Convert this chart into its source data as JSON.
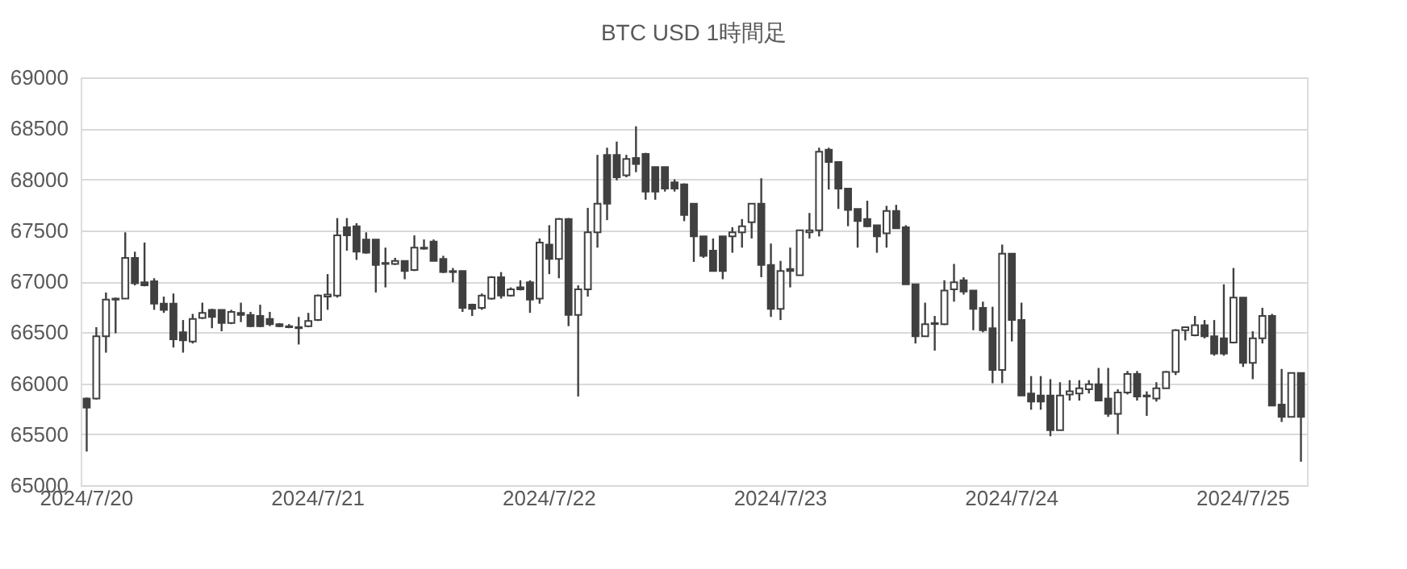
{
  "chart_data": {
    "type": "candlestick",
    "title": "BTC USD 1時間足",
    "categories": [
      "2024/7/20",
      null,
      null,
      null,
      null,
      null,
      null,
      null,
      null,
      null,
      null,
      null,
      null,
      null,
      null,
      null,
      null,
      null,
      null,
      null,
      null,
      null,
      null,
      null,
      "2024/7/21",
      null,
      null,
      null,
      null,
      null,
      null,
      null,
      null,
      null,
      null,
      null,
      null,
      null,
      null,
      null,
      null,
      null,
      null,
      null,
      null,
      null,
      null,
      null,
      "2024/7/22",
      null,
      null,
      null,
      null,
      null,
      null,
      null,
      null,
      null,
      null,
      null,
      null,
      null,
      null,
      null,
      null,
      null,
      null,
      null,
      null,
      null,
      null,
      null,
      "2024/7/23",
      null,
      null,
      null,
      null,
      null,
      null,
      null,
      null,
      null,
      null,
      null,
      null,
      null,
      null,
      null,
      null,
      null,
      null,
      null,
      null,
      null,
      null,
      null,
      "2024/7/24",
      null,
      null,
      null,
      null,
      null,
      null,
      null,
      null,
      null,
      null,
      null,
      null,
      null,
      null,
      null,
      null,
      null,
      null,
      null,
      null,
      null,
      null,
      null,
      "2024/7/25",
      null,
      null,
      null,
      null,
      null,
      null
    ],
    "ohlc": [
      [
        65850,
        65860,
        65330,
        65760
      ],
      [
        65850,
        66550,
        65840,
        66460
      ],
      [
        66460,
        66890,
        66300,
        66820
      ],
      [
        66830,
        66840,
        66490,
        66820
      ],
      [
        66830,
        67480,
        66830,
        67230
      ],
      [
        67230,
        67290,
        66960,
        66980
      ],
      [
        66990,
        67380,
        66950,
        66960
      ],
      [
        67000,
        67030,
        66720,
        66780
      ],
      [
        66780,
        66850,
        66690,
        66720
      ],
      [
        66780,
        66880,
        66350,
        66430
      ],
      [
        66500,
        66620,
        66300,
        66420
      ],
      [
        66410,
        66680,
        66390,
        66630
      ],
      [
        66640,
        66790,
        66630,
        66690
      ],
      [
        66720,
        66730,
        66540,
        66650
      ],
      [
        66720,
        66720,
        66510,
        66590
      ],
      [
        66590,
        66720,
        66580,
        66700
      ],
      [
        66690,
        66790,
        66600,
        66670
      ],
      [
        66670,
        66700,
        66550,
        66560
      ],
      [
        66660,
        66770,
        66550,
        66560
      ],
      [
        66630,
        66700,
        66560,
        66580
      ],
      [
        66580,
        66590,
        66550,
        66560
      ],
      [
        66560,
        66580,
        66540,
        66550
      ],
      [
        66550,
        66650,
        66380,
        66540
      ],
      [
        66560,
        66690,
        66550,
        66610
      ],
      [
        66620,
        66870,
        66610,
        66860
      ],
      [
        66850,
        67070,
        66720,
        66870
      ],
      [
        66860,
        67620,
        66840,
        67450
      ],
      [
        67530,
        67620,
        67300,
        67450
      ],
      [
        67540,
        67570,
        67210,
        67290
      ],
      [
        67410,
        67480,
        67270,
        67280
      ],
      [
        67410,
        67410,
        66890,
        67160
      ],
      [
        67180,
        67330,
        66940,
        67170
      ],
      [
        67170,
        67230,
        67160,
        67200
      ],
      [
        67200,
        67200,
        67020,
        67100
      ],
      [
        67110,
        67450,
        67100,
        67330
      ],
      [
        67330,
        67410,
        67310,
        67320
      ],
      [
        67390,
        67410,
        67200,
        67200
      ],
      [
        67220,
        67250,
        67080,
        67090
      ],
      [
        67100,
        67130,
        66990,
        67090
      ],
      [
        67100,
        67100,
        66700,
        66740
      ],
      [
        66770,
        66780,
        66660,
        66730
      ],
      [
        66740,
        66880,
        66720,
        66860
      ],
      [
        66830,
        67050,
        66820,
        67040
      ],
      [
        67040,
        67090,
        66830,
        66860
      ],
      [
        66860,
        66940,
        66850,
        66920
      ],
      [
        66940,
        67010,
        66910,
        66920
      ],
      [
        66990,
        67010,
        66690,
        66820
      ],
      [
        66830,
        67420,
        66780,
        67380
      ],
      [
        67360,
        67550,
        67070,
        67220
      ],
      [
        67220,
        67620,
        67030,
        67610
      ],
      [
        67610,
        67620,
        66560,
        66670
      ],
      [
        66670,
        66960,
        65870,
        66920
      ],
      [
        66920,
        67720,
        66850,
        67480
      ],
      [
        67480,
        68240,
        67330,
        67760
      ],
      [
        68240,
        68310,
        67600,
        67760
      ],
      [
        68240,
        68370,
        67990,
        68020
      ],
      [
        68040,
        68240,
        68020,
        68200
      ],
      [
        68210,
        68520,
        68070,
        68150
      ],
      [
        68250,
        68260,
        67800,
        67880
      ],
      [
        68120,
        68120,
        67800,
        67880
      ],
      [
        68120,
        68120,
        67880,
        67910
      ],
      [
        67970,
        68000,
        67880,
        67910
      ],
      [
        67950,
        67960,
        67590,
        67650
      ],
      [
        67760,
        67760,
        67190,
        67440
      ],
      [
        67440,
        67440,
        67230,
        67250
      ],
      [
        67300,
        67420,
        67100,
        67100
      ],
      [
        67440,
        67440,
        67020,
        67100
      ],
      [
        67440,
        67530,
        67280,
        67480
      ],
      [
        67480,
        67610,
        67330,
        67540
      ],
      [
        67580,
        67760,
        67420,
        67760
      ],
      [
        67760,
        68010,
        67040,
        67160
      ],
      [
        67160,
        67370,
        66650,
        66730
      ],
      [
        66730,
        67200,
        66620,
        67100
      ],
      [
        67120,
        67330,
        66940,
        67100
      ],
      [
        67060,
        67500,
        67060,
        67500
      ],
      [
        67480,
        67670,
        67420,
        67500
      ],
      [
        67500,
        68310,
        67440,
        68270
      ],
      [
        68290,
        68310,
        67900,
        68170
      ],
      [
        68170,
        68170,
        67710,
        67910
      ],
      [
        67910,
        67910,
        67540,
        67700
      ],
      [
        67710,
        67710,
        67330,
        67590
      ],
      [
        67610,
        67790,
        67530,
        67540
      ],
      [
        67550,
        67550,
        67280,
        67440
      ],
      [
        67470,
        67740,
        67330,
        67690
      ],
      [
        67690,
        67750,
        67520,
        67520
      ],
      [
        67530,
        67550,
        66970,
        66970
      ],
      [
        66970,
        66970,
        66390,
        66460
      ],
      [
        66460,
        66790,
        66460,
        66580
      ],
      [
        66580,
        66660,
        66320,
        66590
      ],
      [
        66580,
        67010,
        66570,
        66910
      ],
      [
        66920,
        67170,
        66800,
        66990
      ],
      [
        67010,
        67040,
        66870,
        66900
      ],
      [
        66910,
        66910,
        66520,
        66730
      ],
      [
        66740,
        66800,
        66500,
        66520
      ],
      [
        66540,
        66750,
        66000,
        66130
      ],
      [
        66130,
        67360,
        66000,
        67270
      ],
      [
        67270,
        67270,
        66410,
        66620
      ],
      [
        66620,
        66790,
        65880,
        65880
      ],
      [
        65900,
        66070,
        65740,
        65820
      ],
      [
        65880,
        66070,
        65740,
        65820
      ],
      [
        65880,
        66040,
        65480,
        65540
      ],
      [
        65540,
        66010,
        65540,
        65880
      ],
      [
        65890,
        66030,
        65830,
        65920
      ],
      [
        65900,
        66030,
        65830,
        65950
      ],
      [
        65940,
        66030,
        65900,
        65990
      ],
      [
        65990,
        66150,
        65830,
        65830
      ],
      [
        65850,
        66150,
        65670,
        65700
      ],
      [
        65700,
        65940,
        65500,
        65910
      ],
      [
        65910,
        66120,
        65890,
        66090
      ],
      [
        66090,
        66120,
        65830,
        65870
      ],
      [
        65880,
        65920,
        65680,
        65870
      ],
      [
        65850,
        66010,
        65820,
        65950
      ],
      [
        65950,
        66120,
        65950,
        66110
      ],
      [
        66110,
        66530,
        66080,
        66520
      ],
      [
        66520,
        66550,
        66420,
        66550
      ],
      [
        66470,
        66660,
        66460,
        66570
      ],
      [
        66570,
        66620,
        66440,
        66460
      ],
      [
        66460,
        66620,
        66270,
        66290
      ],
      [
        66440,
        66970,
        66270,
        66290
      ],
      [
        66400,
        67130,
        66390,
        66840
      ],
      [
        66840,
        66840,
        66160,
        66200
      ],
      [
        66200,
        66510,
        66040,
        66440
      ],
      [
        66440,
        66740,
        66390,
        66660
      ],
      [
        66660,
        66680,
        65780,
        65780
      ],
      [
        65790,
        66140,
        65620,
        65670
      ],
      [
        65670,
        66100,
        65670,
        66100
      ],
      [
        66100,
        66100,
        65230,
        65670
      ]
    ],
    "colors": [
      "#404040",
      "#ffffff",
      "#ffffff",
      "#404040",
      "#ffffff",
      "#404040",
      "#404040",
      "#404040",
      "#404040",
      "#404040",
      "#404040",
      "#ffffff",
      "#ffffff",
      "#404040",
      "#404040",
      "#ffffff",
      "#404040",
      "#404040",
      "#404040",
      "#404040",
      "#404040",
      "#404040",
      "#404040",
      "#ffffff",
      "#ffffff",
      "#ffffff",
      "#ffffff",
      "#404040",
      "#404040",
      "#404040",
      "#404040",
      "#404040",
      "#ffffff",
      "#404040",
      "#ffffff",
      "#404040",
      "#404040",
      "#404040",
      "#404040",
      "#404040",
      "#404040",
      "#ffffff",
      "#ffffff",
      "#404040",
      "#ffffff",
      "#404040",
      "#404040",
      "#ffffff",
      "#404040",
      "#ffffff",
      "#404040",
      "#ffffff",
      "#ffffff",
      "#ffffff",
      "#404040",
      "#404040",
      "#ffffff",
      "#404040",
      "#404040",
      "#404040",
      "#404040",
      "#404040",
      "#404040",
      "#404040",
      "#404040",
      "#404040",
      "#404040",
      "#ffffff",
      "#ffffff",
      "#ffffff",
      "#404040",
      "#404040",
      "#ffffff",
      "#404040",
      "#ffffff",
      "#ffffff",
      "#ffffff",
      "#404040",
      "#404040",
      "#404040",
      "#404040",
      "#404040",
      "#404040",
      "#ffffff",
      "#404040",
      "#404040",
      "#404040",
      "#ffffff",
      "#ffffff",
      "#ffffff",
      "#ffffff",
      "#404040",
      "#404040",
      "#404040",
      "#404040",
      "#ffffff",
      "#404040",
      "#404040",
      "#404040",
      "#404040",
      "#404040",
      "#ffffff",
      "#ffffff",
      "#ffffff",
      "#ffffff",
      "#404040",
      "#404040",
      "#ffffff",
      "#ffffff",
      "#404040",
      "#404040",
      "#ffffff",
      "#ffffff",
      "#ffffff",
      "#ffffff",
      "#ffffff",
      "#404040",
      "#404040",
      "#404040",
      "#ffffff",
      "#404040",
      "#ffffff",
      "#ffffff",
      "#404040",
      "#404040",
      "#ffffff",
      "#404040"
    ],
    "ylim": [
      65000,
      69000
    ],
    "yticks": [
      65000,
      65500,
      66000,
      66500,
      67000,
      67500,
      68000,
      68500,
      69000
    ],
    "grid": "y"
  }
}
